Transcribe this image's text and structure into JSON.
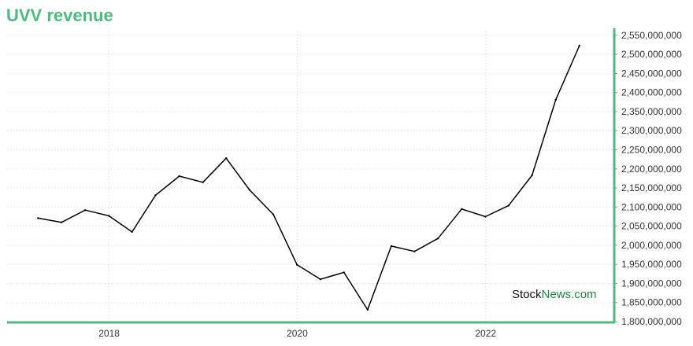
{
  "chart_data": {
    "type": "line",
    "title": "UVV revenue",
    "xlabel": "",
    "ylabel": "",
    "x_ticks": [
      "2018",
      "2020",
      "2022"
    ],
    "y_ticks": [
      "1,800,000,000",
      "1,850,000,000",
      "1,900,000,000",
      "1,950,000,000",
      "2,000,000,000",
      "2,050,000,000",
      "2,100,000,000",
      "2,150,000,000",
      "2,200,000,000",
      "2,250,000,000",
      "2,300,000,000",
      "2,350,000,000",
      "2,400,000,000",
      "2,450,000,000",
      "2,500,000,000",
      "2,550,000,000"
    ],
    "ylim": [
      1800000000,
      2560000000
    ],
    "xlim": [
      "2016-12-01",
      "2023-05-15"
    ],
    "grid": true,
    "y_axis_side": "right",
    "series": [
      {
        "color": "#000000",
        "points": [
          {
            "x": "2017-03-31",
            "y": 2071000000
          },
          {
            "x": "2017-06-30",
            "y": 2060000000
          },
          {
            "x": "2017-09-30",
            "y": 2092000000
          },
          {
            "x": "2017-12-31",
            "y": 2077000000
          },
          {
            "x": "2018-03-31",
            "y": 2035000000
          },
          {
            "x": "2018-06-30",
            "y": 2131000000
          },
          {
            "x": "2018-09-30",
            "y": 2181000000
          },
          {
            "x": "2018-12-31",
            "y": 2165000000
          },
          {
            "x": "2019-03-31",
            "y": 2228000000
          },
          {
            "x": "2019-06-30",
            "y": 2145000000
          },
          {
            "x": "2019-09-30",
            "y": 2081000000
          },
          {
            "x": "2019-12-31",
            "y": 1949000000
          },
          {
            "x": "2020-03-31",
            "y": 1911000000
          },
          {
            "x": "2020-06-30",
            "y": 1929000000
          },
          {
            "x": "2020-09-30",
            "y": 1831000000
          },
          {
            "x": "2020-12-31",
            "y": 1998000000
          },
          {
            "x": "2021-03-31",
            "y": 1984000000
          },
          {
            "x": "2021-06-30",
            "y": 2018000000
          },
          {
            "x": "2021-09-30",
            "y": 2095000000
          },
          {
            "x": "2021-12-31",
            "y": 2075000000
          },
          {
            "x": "2022-03-31",
            "y": 2104000000
          },
          {
            "x": "2022-06-30",
            "y": 2183000000
          },
          {
            "x": "2022-09-30",
            "y": 2381000000
          },
          {
            "x": "2022-12-31",
            "y": 2523000000
          }
        ]
      }
    ]
  },
  "watermark": {
    "part1": "Stock",
    "part2": "News",
    "part3": ".com",
    "color1": "#111111",
    "color2": "#1e8a3c"
  },
  "colors": {
    "title": "#4cbb7f",
    "axis": "#4cbb7f",
    "grid": "#bde3cf"
  }
}
